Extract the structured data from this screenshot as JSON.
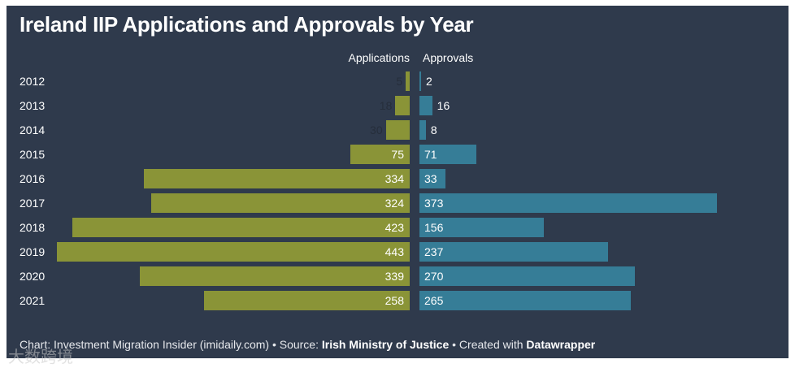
{
  "chart_data": {
    "type": "bar",
    "orientation": "horizontal-butterfly",
    "title": "Ireland IIP Applications and Approvals by Year",
    "categories": [
      "2012",
      "2013",
      "2014",
      "2015",
      "2016",
      "2017",
      "2018",
      "2019",
      "2020",
      "2021"
    ],
    "series": [
      {
        "name": "Applications",
        "color": "#8a9437",
        "values": [
          5,
          18,
          30,
          75,
          334,
          324,
          423,
          443,
          339,
          258
        ]
      },
      {
        "name": "Approvals",
        "color": "#367d97",
        "values": [
          2,
          16,
          8,
          71,
          33,
          373,
          156,
          237,
          270,
          265
        ]
      }
    ],
    "xlim": [
      0,
      443
    ]
  },
  "footer": {
    "prefix": "Chart: Investment Migration Insider (imidaily.com) • Source: ",
    "source": "Irish Ministry of Justice",
    "middle": " • Created with ",
    "tool": "Datawrapper"
  },
  "watermark": "大数跨境"
}
